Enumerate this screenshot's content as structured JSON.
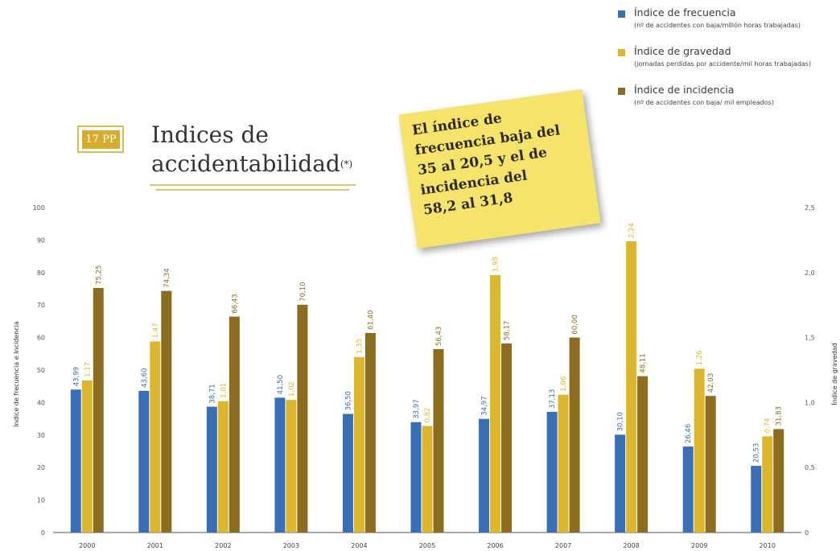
{
  "badge": {
    "label": "17 PP"
  },
  "title": {
    "line1": "Indices de",
    "line2": "accidentabilidad",
    "superscript": "(*)"
  },
  "note": {
    "lines": [
      "El índice de",
      "frecuencia baja del",
      "35 al 20,5 y el de",
      "incidencia del",
      "58,2 al 31,8"
    ]
  },
  "legend": [
    {
      "label": "Índice de frecuencia",
      "note": "(nº de accidentes con baja/millón horas trabajadas)",
      "color": "#3a6fb7"
    },
    {
      "label": "Índice de gravedad",
      "note": "(jornadas perdidas por accidente/mil horas trabajadas)",
      "color": "#dcb62c"
    },
    {
      "label": "Índice de incidencia",
      "note": "(nº de accidentes con baja/ mil empleados)",
      "color": "#8c6d1f"
    }
  ],
  "chart_data": {
    "type": "bar",
    "categories": [
      "2000",
      "2001",
      "2002",
      "2003",
      "2004",
      "2005",
      "2006",
      "2007",
      "2008",
      "2009",
      "2010"
    ],
    "series": [
      {
        "name": "Índice de frecuencia",
        "axis": "left",
        "color": "#3a6fb7",
        "values": [
          43.99,
          43.6,
          38.71,
          41.5,
          36.5,
          33.97,
          34.97,
          37.13,
          30.1,
          26.46,
          20.53
        ],
        "labels": [
          "43,99",
          "43,60",
          "38,71",
          "41,50",
          "36,50",
          "33,97",
          "34,97",
          "37,13",
          "30,10",
          "26,46",
          "20,53"
        ]
      },
      {
        "name": "Índice de gravedad",
        "axis": "right",
        "color": "#dcb62c",
        "values": [
          1.17,
          1.47,
          1.01,
          1.02,
          1.35,
          0.82,
          1.98,
          1.06,
          2.24,
          1.26,
          0.74
        ],
        "labels": [
          "1,17",
          "1,47",
          "1,01",
          "1,02",
          "1,35",
          "0,82",
          "1,98",
          "1,06",
          "2,24",
          "1,26",
          "0,74"
        ]
      },
      {
        "name": "Índice de incidencia",
        "axis": "left",
        "color": "#8c6d1f",
        "values": [
          75.25,
          74.34,
          66.43,
          70.1,
          61.4,
          56.43,
          58.17,
          60.0,
          48.11,
          42.03,
          31.83
        ],
        "labels": [
          "75,25",
          "74,34",
          "66,43",
          "70,10",
          "61,40",
          "56,43",
          "58,17",
          "60,00",
          "48,11",
          "42,03",
          "31,83"
        ]
      }
    ],
    "ylabel": "Índice de frecuencia e Incidencia",
    "ylabel_right": "Índice de gravedad",
    "ylim": [
      0,
      100
    ],
    "ylim_right": [
      0,
      2.5
    ],
    "yticks": [
      "0",
      "10",
      "20",
      "30",
      "40",
      "50",
      "60",
      "70",
      "80",
      "90",
      "100"
    ],
    "yticks_right": [
      "0",
      "0,5",
      "1,0",
      "1,5",
      "2,0",
      "2,5"
    ],
    "grid": false,
    "legend_position": "top-right"
  }
}
